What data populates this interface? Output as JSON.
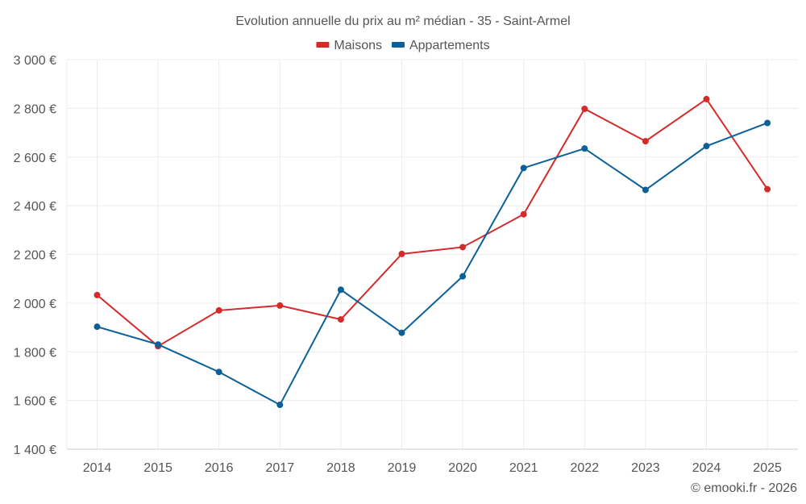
{
  "chart_data": {
    "type": "line",
    "title": "Evolution annuelle du prix au m² médian - 35 - Saint-Armel",
    "xlabel": "",
    "ylabel": "",
    "categories": [
      "2014",
      "2015",
      "2016",
      "2017",
      "2018",
      "2019",
      "2020",
      "2021",
      "2022",
      "2023",
      "2024",
      "2025"
    ],
    "ylim": [
      1400,
      3000
    ],
    "yticks": [
      1400,
      1600,
      1800,
      2000,
      2200,
      2400,
      2600,
      2800,
      3000
    ],
    "ytick_labels": [
      "1 400 €",
      "1 600 €",
      "1 800 €",
      "2 000 €",
      "2 200 €",
      "2 400 €",
      "2 600 €",
      "2 800 €",
      "3 000 €"
    ],
    "grid": true,
    "legend_position": "top-center",
    "series": [
      {
        "name": "Maisons",
        "color": "#d42a2a",
        "values": [
          2033,
          1823,
          1970,
          1990,
          1933,
          2202,
          2230,
          2365,
          2798,
          2665,
          2838,
          2468
        ]
      },
      {
        "name": "Appartements",
        "color": "#0b6097",
        "values": [
          1903,
          1830,
          1717,
          1582,
          2055,
          1878,
          2110,
          2555,
          2635,
          2465,
          2645,
          2740
        ]
      }
    ]
  },
  "credit": "© emooki.fr - 2026"
}
